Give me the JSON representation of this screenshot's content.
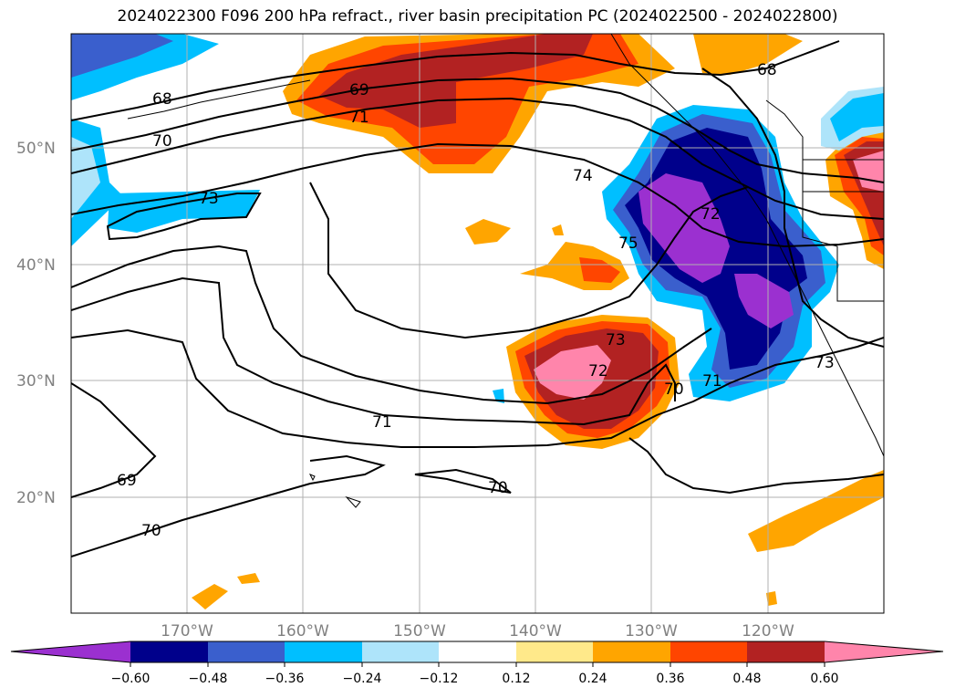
{
  "title": "2024022300 F096 200 hPa refract., river basin precipitation PC (2024022500 - 2024022800)",
  "map": {
    "lat_labels": [
      "50°N",
      "40°N",
      "30°N",
      "20°N"
    ],
    "lon_labels": [
      "170°W",
      "160°W",
      "150°W",
      "140°W",
      "130°W",
      "120°W"
    ],
    "contour_labels": [
      "68",
      "69",
      "71",
      "70",
      "73",
      "74",
      "72",
      "75",
      "73",
      "72",
      "71",
      "70",
      "71",
      "73",
      "68",
      "69",
      "70",
      "70"
    ]
  },
  "colorbar": {
    "labels": [
      "−0.60",
      "−0.48",
      "−0.36",
      "−0.24",
      "−0.12",
      "0.12",
      "0.24",
      "0.36",
      "0.48",
      "0.60"
    ],
    "colors": {
      "lt_0_60": "#9b30d0",
      "m0_60_m0_48": "#00008b",
      "m0_48_m0_36": "#3a5fcd",
      "m0_36_m0_24": "#00bfff",
      "m0_24_m0_12": "#aee4fa",
      "m0_12_0_12": "#ffffff",
      "0_12_0_24": "#ffe98a",
      "0_24_0_36": "#ffa500",
      "0_36_0_48": "#ff4500",
      "0_48_0_60": "#b22222",
      "gt_0_60": "#ff85ab"
    }
  }
}
